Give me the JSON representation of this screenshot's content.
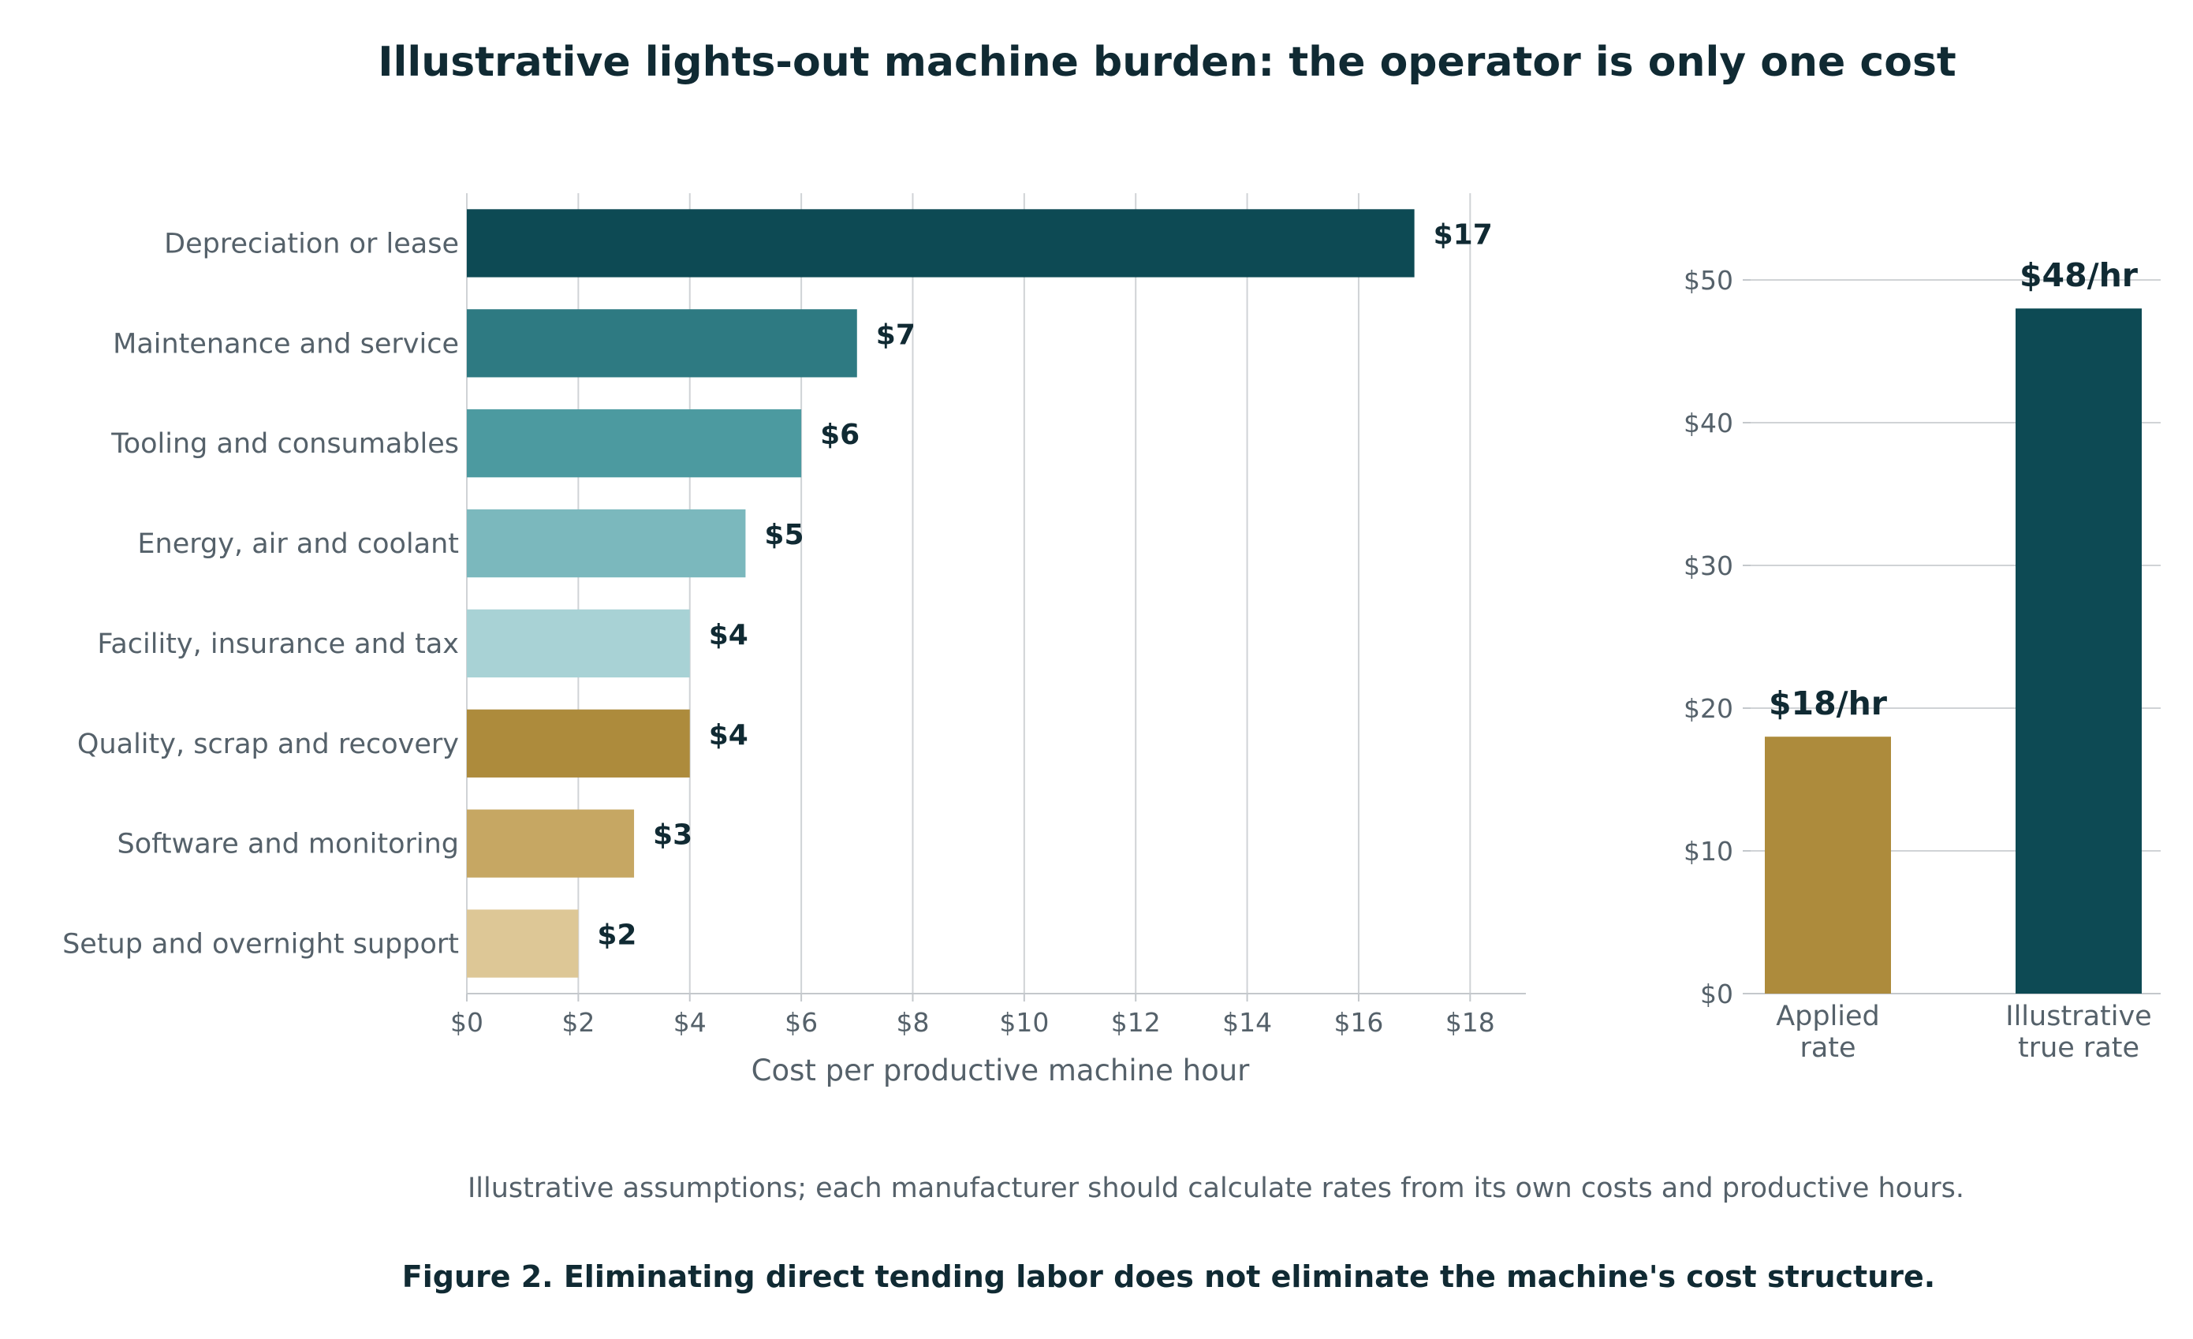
{
  "title": "Illustrative lights-out machine burden: the operator is only one cost",
  "note": "Illustrative assumptions; each manufacturer should calculate rates from its own costs and productive hours.",
  "caption": "Figure 2. Eliminating direct tending labor does not eliminate the machine's cost structure.",
  "chart_data": [
    {
      "type": "bar",
      "orientation": "horizontal",
      "categories": [
        "Depreciation or lease",
        "Maintenance and service",
        "Tooling and consumables",
        "Energy, air and coolant",
        "Facility, insurance and tax",
        "Quality, scrap and recovery",
        "Software and monitoring",
        "Setup and overnight support"
      ],
      "values": [
        17,
        7,
        6,
        5,
        4,
        4,
        3,
        2
      ],
      "value_labels": [
        "$17",
        "$7",
        "$6",
        "$5",
        "$4",
        "$4",
        "$3",
        "$2"
      ],
      "colors": [
        "#0d4a54",
        "#2e7a82",
        "#4c9aa0",
        "#7bb8bd",
        "#a8d2d5",
        "#ad8b3c",
        "#c6a763",
        "#ddc796"
      ],
      "xlabel": "Cost per productive machine hour",
      "xlim": [
        0,
        19
      ],
      "xticks": [
        0,
        2,
        4,
        6,
        8,
        10,
        12,
        14,
        16,
        18
      ],
      "xtick_labels": [
        "$0",
        "$2",
        "$4",
        "$6",
        "$8",
        "$10",
        "$12",
        "$14",
        "$16",
        "$18"
      ],
      "grid": "vertical"
    },
    {
      "type": "bar",
      "orientation": "vertical",
      "categories": [
        "Applied rate",
        "Illustrative true rate"
      ],
      "category_lines": [
        [
          "Applied",
          "rate"
        ],
        [
          "Illustrative",
          "true rate"
        ]
      ],
      "values": [
        18,
        48
      ],
      "value_labels": [
        "$18/hr",
        "$48/hr"
      ],
      "colors": [
        "#ad8b3c",
        "#0d4a54"
      ],
      "ylim": [
        0,
        53
      ],
      "yticks": [
        0,
        10,
        20,
        30,
        40,
        50
      ],
      "ytick_labels": [
        "$0",
        "$10",
        "$20",
        "$30",
        "$40",
        "$50"
      ],
      "grid": "horizontal"
    }
  ]
}
